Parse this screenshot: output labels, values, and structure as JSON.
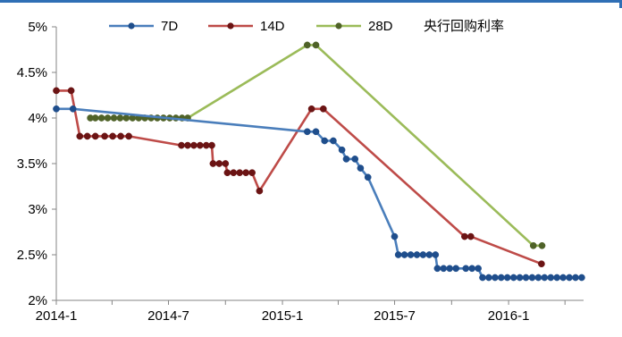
{
  "chart_data": {
    "type": "line",
    "title": "央行回购利率",
    "xlabel": "",
    "ylabel": "",
    "x_range": [
      "2014-01",
      "2016-05"
    ],
    "ylim": [
      2,
      5
    ],
    "y_ticks": [
      2,
      2.5,
      3,
      3.5,
      4,
      4.5,
      5
    ],
    "y_tick_labels": [
      "2%",
      "2.5%",
      "3%",
      "3.5%",
      "4%",
      "4.5%",
      "5%"
    ],
    "x_ticks": [
      "2014-01",
      "2014-07",
      "2015-01",
      "2015-07",
      "2016-01"
    ],
    "x_tick_labels": [
      "2014-1",
      "2014-7",
      "2015-1",
      "2015-7",
      "2016-1"
    ],
    "grid": false,
    "legend_position": "top",
    "series": [
      {
        "name": "7D",
        "color": "#4a7ebb",
        "marker_color": "#1f4e8c",
        "points": [
          [
            "2014-01-01",
            4.1
          ],
          [
            "2014-01-28",
            4.1
          ],
          [
            "2015-02-10",
            3.85
          ],
          [
            "2015-02-24",
            3.85
          ],
          [
            "2015-03-10",
            3.75
          ],
          [
            "2015-03-24",
            3.75
          ],
          [
            "2015-04-07",
            3.65
          ],
          [
            "2015-04-14",
            3.55
          ],
          [
            "2015-04-28",
            3.55
          ],
          [
            "2015-05-07",
            3.45
          ],
          [
            "2015-05-19",
            3.35
          ],
          [
            "2015-07-01",
            2.7
          ],
          [
            "2015-07-07",
            2.5
          ],
          [
            "2015-07-17",
            2.5
          ],
          [
            "2015-07-27",
            2.5
          ],
          [
            "2015-08-06",
            2.5
          ],
          [
            "2015-08-16",
            2.5
          ],
          [
            "2015-08-26",
            2.5
          ],
          [
            "2015-09-05",
            2.5
          ],
          [
            "2015-09-08",
            2.35
          ],
          [
            "2015-09-18",
            2.35
          ],
          [
            "2015-09-28",
            2.35
          ],
          [
            "2015-10-08",
            2.35
          ],
          [
            "2015-10-24",
            2.35
          ],
          [
            "2015-11-03",
            2.35
          ],
          [
            "2015-11-13",
            2.35
          ],
          [
            "2015-11-20",
            2.25
          ],
          [
            "2015-11-30",
            2.25
          ],
          [
            "2015-12-10",
            2.25
          ],
          [
            "2015-12-20",
            2.25
          ],
          [
            "2015-12-30",
            2.25
          ],
          [
            "2016-01-09",
            2.25
          ],
          [
            "2016-01-19",
            2.25
          ],
          [
            "2016-01-29",
            2.25
          ],
          [
            "2016-02-08",
            2.25
          ],
          [
            "2016-02-18",
            2.25
          ],
          [
            "2016-02-28",
            2.25
          ],
          [
            "2016-03-09",
            2.25
          ],
          [
            "2016-03-19",
            2.25
          ],
          [
            "2016-03-29",
            2.25
          ],
          [
            "2016-04-08",
            2.25
          ],
          [
            "2016-04-18",
            2.25
          ],
          [
            "2016-04-28",
            2.25
          ]
        ]
      },
      {
        "name": "14D",
        "color": "#be4b48",
        "marker_color": "#6b1414",
        "points": [
          [
            "2014-01-01",
            4.3
          ],
          [
            "2014-01-25",
            4.3
          ],
          [
            "2014-02-08",
            3.8
          ],
          [
            "2014-02-20",
            3.8
          ],
          [
            "2014-03-05",
            3.8
          ],
          [
            "2014-03-20",
            3.8
          ],
          [
            "2014-04-02",
            3.8
          ],
          [
            "2014-04-15",
            3.8
          ],
          [
            "2014-04-28",
            3.8
          ],
          [
            "2014-07-22",
            3.7
          ],
          [
            "2014-08-01",
            3.7
          ],
          [
            "2014-08-11",
            3.7
          ],
          [
            "2014-08-21",
            3.7
          ],
          [
            "2014-08-31",
            3.7
          ],
          [
            "2014-09-09",
            3.7
          ],
          [
            "2014-09-11",
            3.5
          ],
          [
            "2014-09-21",
            3.5
          ],
          [
            "2014-10-01",
            3.5
          ],
          [
            "2014-10-04",
            3.4
          ],
          [
            "2014-10-14",
            3.4
          ],
          [
            "2014-10-24",
            3.4
          ],
          [
            "2014-11-03",
            3.4
          ],
          [
            "2014-11-13",
            3.4
          ],
          [
            "2014-11-25",
            3.2
          ],
          [
            "2015-02-17",
            4.1
          ],
          [
            "2015-03-08",
            4.1
          ],
          [
            "2015-10-22",
            2.7
          ],
          [
            "2015-11-01",
            2.7
          ],
          [
            "2016-02-23",
            2.4
          ]
        ]
      },
      {
        "name": "28D",
        "color": "#9bbb59",
        "marker_color": "#4f6228",
        "points": [
          [
            "2014-02-25",
            4.0
          ],
          [
            "2014-03-05",
            4.0
          ],
          [
            "2014-03-15",
            4.0
          ],
          [
            "2014-03-25",
            4.0
          ],
          [
            "2014-04-04",
            4.0
          ],
          [
            "2014-04-14",
            4.0
          ],
          [
            "2014-04-24",
            4.0
          ],
          [
            "2014-05-04",
            4.0
          ],
          [
            "2014-05-14",
            4.0
          ],
          [
            "2014-05-24",
            4.0
          ],
          [
            "2014-06-03",
            4.0
          ],
          [
            "2014-06-13",
            4.0
          ],
          [
            "2014-06-23",
            4.0
          ],
          [
            "2014-07-03",
            4.0
          ],
          [
            "2014-07-13",
            4.0
          ],
          [
            "2014-07-23",
            4.0
          ],
          [
            "2014-08-01",
            4.0
          ],
          [
            "2015-02-10",
            4.8
          ],
          [
            "2015-02-24",
            4.8
          ],
          [
            "2016-02-10",
            2.6
          ],
          [
            "2016-02-24",
            2.6
          ]
        ]
      }
    ]
  }
}
